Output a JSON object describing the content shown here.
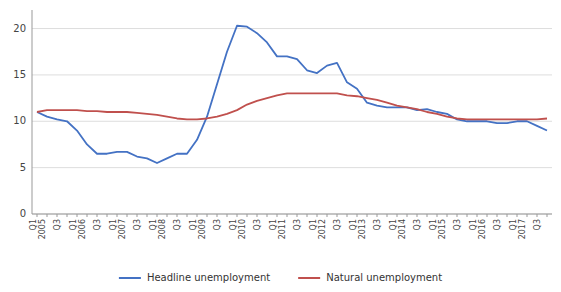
{
  "chart_data": {
    "type": "line",
    "categories": [
      "Q1\n2005",
      null,
      "Q3",
      null,
      "Q1\n2006",
      null,
      "Q3",
      null,
      "Q1\n2007",
      null,
      "Q3",
      null,
      "Q1\n2008",
      null,
      "Q3",
      null,
      "Q1\n2009",
      null,
      "Q3",
      null,
      "Q1\n2010",
      null,
      "Q3",
      null,
      "Q1\n2011",
      null,
      "Q3",
      null,
      "Q1\n2012",
      null,
      "Q3",
      null,
      "Q1\n2013",
      null,
      "Q3",
      null,
      "Q1\n2014",
      null,
      "Q3",
      null,
      "Q1\n2015",
      null,
      "Q3",
      null,
      "Q1\n2016",
      null,
      "Q3",
      null,
      "Q1\n2017",
      null,
      "Q3",
      null
    ],
    "series": [
      {
        "name": "Headline unemployment",
        "color": "#4472C4",
        "values": [
          11.0,
          10.5,
          10.2,
          10.0,
          9.0,
          7.5,
          6.5,
          6.5,
          6.7,
          6.7,
          6.2,
          6.0,
          5.5,
          6.0,
          6.5,
          6.5,
          8.0,
          10.5,
          14.0,
          17.5,
          20.3,
          20.2,
          19.5,
          18.5,
          17.0,
          17.0,
          16.7,
          15.5,
          15.2,
          16.0,
          16.3,
          14.2,
          13.5,
          12.0,
          11.7,
          11.5,
          11.5,
          11.5,
          11.2,
          11.3,
          11.0,
          10.8,
          10.2,
          10.0,
          10.0,
          10.0,
          9.8,
          9.8,
          10.0,
          10.0,
          9.5,
          9.0
        ]
      },
      {
        "name": "Natural unemployment",
        "color": "#C0504D",
        "values": [
          11.0,
          11.2,
          11.2,
          11.2,
          11.2,
          11.1,
          11.1,
          11.0,
          11.0,
          11.0,
          10.9,
          10.8,
          10.7,
          10.5,
          10.3,
          10.2,
          10.2,
          10.3,
          10.5,
          10.8,
          11.2,
          11.8,
          12.2,
          12.5,
          12.8,
          13.0,
          13.0,
          13.0,
          13.0,
          13.0,
          13.0,
          12.8,
          12.7,
          12.5,
          12.3,
          12.0,
          11.7,
          11.5,
          11.3,
          11.0,
          10.8,
          10.5,
          10.3,
          10.2,
          10.2,
          10.2,
          10.2,
          10.2,
          10.2,
          10.2,
          10.2,
          10.3
        ]
      }
    ],
    "ylim": [
      0,
      22
    ],
    "yticks": [
      0,
      5,
      10,
      15,
      20
    ],
    "grid": true,
    "legend": "bottom"
  }
}
